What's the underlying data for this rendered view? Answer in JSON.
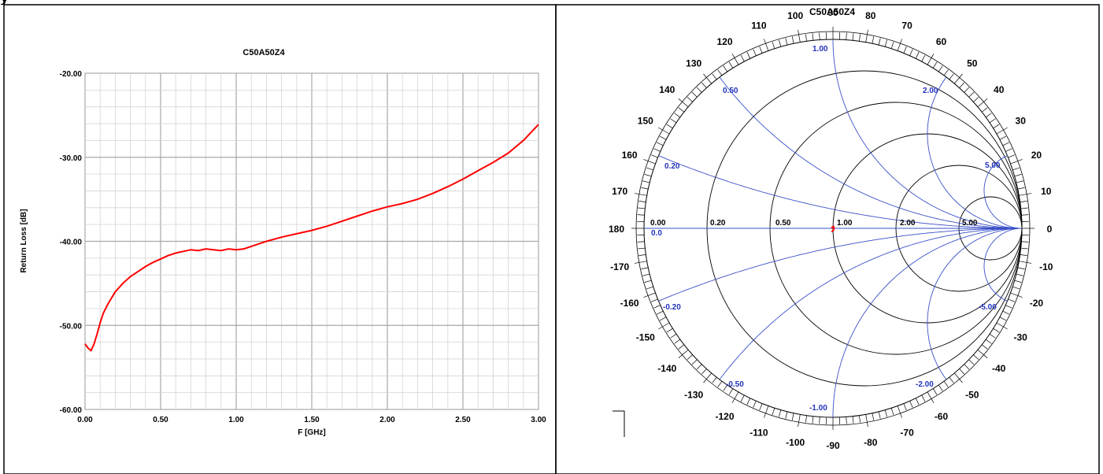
{
  "heading_fragment": "y",
  "chart_data": [
    {
      "type": "line",
      "title": "C50A50Z4",
      "xlabel": "F [GHz]",
      "ylabel": "Return Loss [dB]",
      "xlim": [
        0,
        3
      ],
      "ylim": [
        -60,
        -20
      ],
      "x_ticks": [
        "0.00",
        "0.50",
        "1.00",
        "1.50",
        "2.00",
        "2.50",
        "3.00"
      ],
      "y_ticks": [
        "-20.00",
        "-30.00",
        "-40.00",
        "-50.00",
        "-60.00"
      ],
      "grid": true,
      "series": [
        {
          "color": "#ff0000",
          "x": [
            0.0,
            0.02,
            0.04,
            0.06,
            0.08,
            0.1,
            0.12,
            0.15,
            0.2,
            0.25,
            0.3,
            0.35,
            0.4,
            0.45,
            0.5,
            0.55,
            0.6,
            0.65,
            0.7,
            0.75,
            0.8,
            0.85,
            0.9,
            0.95,
            1.0,
            1.05,
            1.1,
            1.15,
            1.2,
            1.3,
            1.4,
            1.5,
            1.6,
            1.7,
            1.8,
            1.9,
            2.0,
            2.1,
            2.2,
            2.3,
            2.4,
            2.5,
            2.6,
            2.7,
            2.8,
            2.9,
            3.0
          ],
          "values": [
            -52.2,
            -52.7,
            -53.0,
            -52.2,
            -51.0,
            -49.7,
            -48.6,
            -47.5,
            -46.0,
            -45.0,
            -44.2,
            -43.6,
            -43.0,
            -42.5,
            -42.1,
            -41.7,
            -41.4,
            -41.2,
            -41.0,
            -41.1,
            -40.9,
            -41.0,
            -41.1,
            -40.9,
            -41.0,
            -40.9,
            -40.6,
            -40.3,
            -40.0,
            -39.5,
            -39.1,
            -38.7,
            -38.2,
            -37.6,
            -37.0,
            -36.4,
            -35.9,
            -35.5,
            -35.0,
            -34.3,
            -33.5,
            -32.6,
            -31.6,
            -30.6,
            -29.5,
            -28.0,
            -26.1
          ]
        }
      ]
    },
    {
      "type": "smith",
      "title": "C50A50Z4",
      "resistance_labels": [
        "0.00",
        "0.20",
        "0.50",
        "1.00",
        "2.00",
        "5.00"
      ],
      "reactance_labels": [
        "1.00",
        "0.50",
        "2.00",
        "0.20",
        "5.00",
        "0.0",
        "-0.20",
        "-5.00",
        "-0.50",
        "-2.00",
        "-1.00"
      ],
      "angle_labels": [
        "90",
        "100",
        "80",
        "110",
        "70",
        "120",
        "60",
        "130",
        "50",
        "140",
        "40",
        "150",
        "30",
        "160",
        "20",
        "170",
        "10",
        "180",
        "0",
        "-170",
        "-10",
        "-160",
        "-20",
        "-150",
        "-30",
        "-140",
        "-40",
        "-130",
        "-50",
        "-120",
        "-60",
        "-110",
        "-70",
        "-100",
        "-80",
        "-90"
      ],
      "trace_color": "#ff0000",
      "trace_gamma": [
        [
          -0.008,
          0.0
        ],
        [
          -0.004,
          0.006
        ],
        [
          0.003,
          0.01
        ],
        [
          0.006,
          0.004
        ],
        [
          0.004,
          -0.006
        ],
        [
          0.0,
          -0.012
        ],
        [
          -0.004,
          -0.016
        ],
        [
          -0.008,
          -0.014
        ]
      ]
    }
  ]
}
